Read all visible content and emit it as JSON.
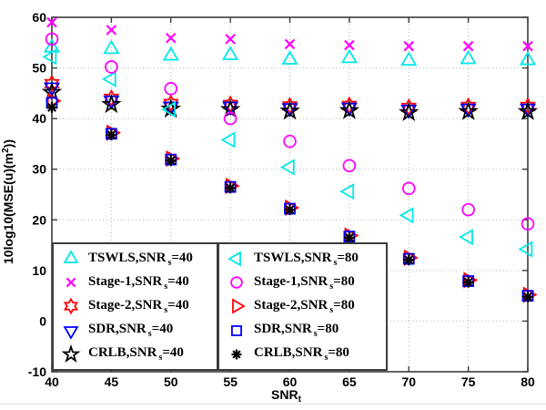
{
  "figure": {
    "background": "#ffffff"
  },
  "axes": {
    "xlim": [
      40,
      80
    ],
    "ylim": [
      -10,
      60
    ],
    "xticks": [
      40,
      45,
      50,
      55,
      60,
      65,
      70,
      75,
      80
    ],
    "yticks": [
      -10,
      0,
      10,
      20,
      30,
      40,
      50,
      60
    ],
    "xlabel": {
      "text": "SNR",
      "sub": "t"
    },
    "ylabel": {
      "text": "10log10(MSE(u)(m",
      "sup": "2",
      "suffix": "))"
    },
    "grid": "dotted",
    "axis_color": "#3c3c3c",
    "grid_color": "#b5b5b5"
  },
  "chart_data": {
    "type": "scatter",
    "title": "",
    "xlabel": "SNR_t",
    "ylabel": "10log10(MSE(u)(m^2))",
    "xlim": [
      40,
      80
    ],
    "ylim": [
      -10,
      60
    ],
    "grid": true,
    "legend_position": "two boxes inside, bottom-left",
    "x": [
      40,
      45,
      50,
      55,
      60,
      65,
      70,
      75,
      80
    ],
    "series": [
      {
        "name": "TSWLS,SNR_s=40",
        "marker": "triangle-up",
        "color": "#00E8E8",
        "values": [
          54.0,
          53.7,
          52.4,
          52.5,
          51.6,
          51.9,
          51.4,
          51.7,
          51.5
        ]
      },
      {
        "name": "Stage-1,SNR_s=40",
        "marker": "x",
        "color": "#FF00FF",
        "values": [
          59.0,
          57.5,
          55.9,
          55.7,
          54.7,
          54.5,
          54.3,
          54.3,
          54.3
        ]
      },
      {
        "name": "Stage-2,SNR_s=40",
        "marker": "hexagram",
        "color": "#FF0000",
        "values": [
          46.9,
          44.0,
          43.0,
          42.8,
          42.5,
          42.6,
          42.2,
          42.4,
          42.4
        ]
      },
      {
        "name": "SDR,SNR_s=40",
        "marker": "triangle-down",
        "color": "#0000FF",
        "values": [
          46.2,
          43.6,
          42.4,
          42.4,
          42.1,
          42.2,
          41.8,
          42.0,
          42.0
        ]
      },
      {
        "name": "CRLB,SNR_s=40",
        "marker": "pentagram",
        "color": "#000000",
        "values": [
          45.2,
          42.8,
          41.9,
          41.8,
          41.5,
          41.6,
          41.2,
          41.4,
          41.4
        ]
      },
      {
        "name": "TSWLS,SNR_s=80",
        "marker": "triangle-left",
        "color": "#00E8E8",
        "values": [
          52.2,
          47.8,
          41.8,
          35.8,
          30.4,
          25.6,
          20.9,
          16.6,
          14.2
        ]
      },
      {
        "name": "Stage-1,SNR_s=80",
        "marker": "circle",
        "color": "#FF00FF",
        "values": [
          55.7,
          50.2,
          45.9,
          40.0,
          35.5,
          30.7,
          26.2,
          22.0,
          19.2
        ]
      },
      {
        "name": "Stage-2,SNR_s=80",
        "marker": "triangle-right",
        "color": "#FF0000",
        "values": [
          43.5,
          37.2,
          32.1,
          26.7,
          22.4,
          16.9,
          12.5,
          8.1,
          5.2
        ]
      },
      {
        "name": "SDR,SNR_s=80",
        "marker": "square",
        "color": "#0000FF",
        "values": [
          43.1,
          37.0,
          31.9,
          26.5,
          22.2,
          16.7,
          12.3,
          7.9,
          5.0
        ]
      },
      {
        "name": "CRLB,SNR_s=80",
        "marker": "asterisk",
        "color": "#000000",
        "values": [
          42.2,
          36.8,
          31.7,
          26.3,
          22.0,
          16.5,
          12.1,
          7.7,
          4.8
        ]
      }
    ]
  },
  "legend": {
    "box40": {
      "items": [
        {
          "prefix": "TSWLS,SNR",
          "sub": "s",
          "suffix": "=40"
        },
        {
          "prefix": "Stage-1,SNR",
          "sub": "s",
          "suffix": "=40"
        },
        {
          "prefix": "Stage-2,SNR",
          "sub": "s",
          "suffix": "=40"
        },
        {
          "prefix": "SDR,SNR",
          "sub": "s",
          "suffix": "=40"
        },
        {
          "prefix": "CRLB,SNR",
          "sub": "s",
          "suffix": "=40"
        }
      ]
    },
    "box80": {
      "items": [
        {
          "prefix": "TSWLS,SNR",
          "sub": "s",
          "suffix": "=80"
        },
        {
          "prefix": "Stage-1,SNR",
          "sub": "s",
          "suffix": "=80"
        },
        {
          "prefix": "Stage-2,SNR",
          "sub": "s",
          "suffix": "=80"
        },
        {
          "prefix": "SDR,SNR",
          "sub": "s",
          "suffix": "=80"
        },
        {
          "prefix": "CRLB,SNR",
          "sub": "s",
          "suffix": "=80"
        }
      ]
    }
  }
}
